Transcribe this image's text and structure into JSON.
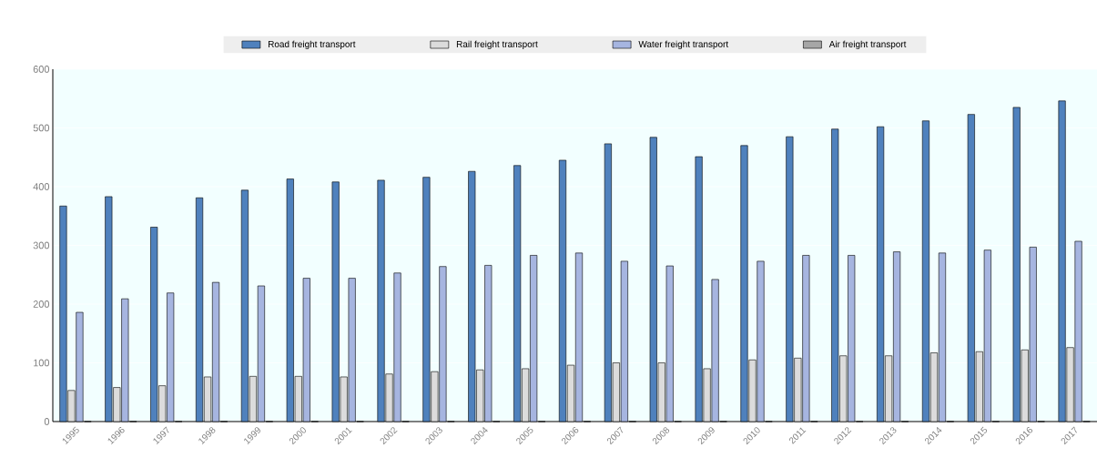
{
  "chart_data": {
    "type": "bar",
    "categories": [
      "1995",
      "1996",
      "1997",
      "1998",
      "1999",
      "2000",
      "2001",
      "2002",
      "2003",
      "2004",
      "2005",
      "2006",
      "2007",
      "2008",
      "2009",
      "2010",
      "2011",
      "2012",
      "2013",
      "2014",
      "2015",
      "2016",
      "2017"
    ],
    "series": [
      {
        "name": "Road freight transport",
        "color": "#4f81bd",
        "values": [
          367,
          383,
          331,
          381,
          394,
          413,
          408,
          411,
          416,
          426,
          436,
          445,
          473,
          484,
          451,
          470,
          485,
          498,
          502,
          512,
          523,
          535,
          546
        ]
      },
      {
        "name": "Rail freight transport",
        "color": "#dcdcdc",
        "values": [
          53,
          58,
          61,
          76,
          77,
          77,
          76,
          81,
          85,
          88,
          90,
          96,
          100,
          100,
          90,
          105,
          108,
          112,
          112,
          117,
          119,
          122,
          126
        ]
      },
      {
        "name": "Water freight transport",
        "color": "#a6b5e0",
        "values": [
          186,
          209,
          219,
          237,
          231,
          244,
          244,
          253,
          264,
          266,
          283,
          287,
          273,
          265,
          242,
          273,
          283,
          283,
          289,
          287,
          292,
          297,
          307
        ]
      },
      {
        "name": "Air freight transport",
        "color": "#a6a6a6",
        "values": [
          0,
          0,
          0,
          0,
          0,
          0,
          0,
          0,
          0,
          0,
          0,
          0,
          0,
          0,
          0,
          0,
          0,
          0,
          0,
          0,
          0,
          0,
          0
        ]
      }
    ],
    "ylim": [
      0,
      600
    ],
    "yticks": [
      0,
      100,
      200,
      300,
      400,
      500,
      600
    ],
    "grid": "y",
    "legend": "top"
  }
}
